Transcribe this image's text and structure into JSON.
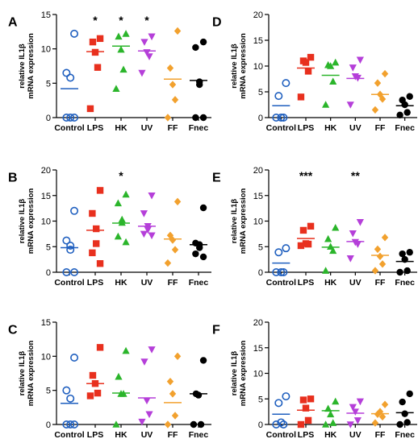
{
  "figure": {
    "marker_colors": {
      "Control": "#1f5fbf",
      "LPS": "#e8301e",
      "HK": "#2bb52b",
      "UV": "#b53fd9",
      "FF": "#f2a12e",
      "Fnec": "#000000"
    },
    "marker_shapes": {
      "Control": "circle-open",
      "LPS": "square",
      "HK": "triangle-up",
      "UV": "triangle-down",
      "FF": "diamond",
      "Fnec": "circle"
    }
  },
  "chart_data": [
    {
      "panel": "A",
      "type": "scatter",
      "ylabel": "relative IL1β mRNA expression",
      "ylim": [
        0,
        15
      ],
      "yticks": [
        0,
        5,
        10,
        15
      ],
      "categories": [
        "Control",
        "LPS",
        "HK",
        "UV",
        "FF",
        "Fnec"
      ],
      "points": [
        [
          12.2,
          6.5,
          5.8,
          0,
          0,
          0
        ],
        [
          11.5,
          11.0,
          9.5,
          7.3,
          1.3
        ],
        [
          12.2,
          11.8,
          9.9,
          7.0,
          4.2
        ],
        [
          11.8,
          11.0,
          9.5,
          8.9,
          6.5
        ],
        [
          12.6,
          7.2,
          4.8,
          2.6,
          0
        ],
        [
          11.0,
          10.2,
          5.2,
          4.8,
          0,
          0
        ]
      ],
      "means": [
        4.2,
        9.6,
        10.4,
        9.7,
        5.6,
        5.4
      ],
      "annotations": [
        "",
        "*",
        "*",
        "*",
        "",
        ""
      ]
    },
    {
      "panel": "B",
      "type": "scatter",
      "ylabel": "relative IL1β mRNA expression",
      "ylim": [
        0,
        20
      ],
      "yticks": [
        0,
        5,
        10,
        15,
        20
      ],
      "categories": [
        "Control",
        "LPS",
        "HK",
        "UV",
        "FF",
        "Fnec"
      ],
      "points": [
        [
          12.0,
          6.2,
          5.2,
          4.4,
          0,
          0
        ],
        [
          16.0,
          11.5,
          8.5,
          5.6,
          3.8,
          1.7
        ],
        [
          15.2,
          13.5,
          10.3,
          9.7,
          7.0,
          5.9
        ],
        [
          15.0,
          11.5,
          9.0,
          8.3,
          7.5,
          7.2
        ],
        [
          13.8,
          7.2,
          6.3,
          4.4,
          1.8
        ],
        [
          12.6,
          5.7,
          5.4,
          4.8,
          3.6,
          3.0
        ]
      ],
      "means": [
        4.8,
        8.2,
        9.6,
        9.0,
        6.5,
        5.4
      ],
      "annotations": [
        "",
        "",
        "*",
        "",
        "",
        ""
      ]
    },
    {
      "panel": "C",
      "type": "scatter",
      "ylabel": "relative IL1β mRNA expression",
      "ylim": [
        0,
        15
      ],
      "yticks": [
        0,
        5,
        10,
        15
      ],
      "categories": [
        "Control",
        "LPS",
        "HK",
        "UV",
        "FF",
        "Fnec"
      ],
      "points": [
        [
          9.8,
          5.0,
          3.8,
          0,
          0,
          0
        ],
        [
          11.3,
          7.2,
          6.0,
          4.6,
          4.2
        ],
        [
          10.8,
          7.0,
          4.5,
          4.5,
          0
        ],
        [
          11.0,
          9.2,
          3.5,
          1.5,
          0.4
        ],
        [
          10.0,
          6.3,
          4.5,
          1.3,
          0
        ],
        [
          9.4,
          4.5,
          4.3,
          0,
          0
        ]
      ],
      "means": [
        3.1,
        6.0,
        4.6,
        3.9,
        3.2,
        4.5
      ],
      "annotations": [
        "",
        "",
        "",
        "",
        "",
        ""
      ]
    },
    {
      "panel": "D",
      "type": "scatter",
      "ylabel": "relative IL1β mRNA expression",
      "ylim": [
        0,
        20
      ],
      "yticks": [
        0,
        5,
        10,
        15,
        20
      ],
      "categories": [
        "Control",
        "LPS",
        "HK",
        "UV",
        "FF",
        "Fnec"
      ],
      "points": [
        [
          6.7,
          4.2,
          0,
          0,
          0
        ],
        [
          11.7,
          11.0,
          10.7,
          9.0,
          4.0
        ],
        [
          10.7,
          10.2,
          10.0,
          7.0,
          2.5
        ],
        [
          11.2,
          9.7,
          8.0,
          7.7,
          2.5
        ],
        [
          8.5,
          6.7,
          4.5,
          3.6,
          1.5
        ],
        [
          4.1,
          3.4,
          2.5,
          1.0,
          0.5
        ]
      ],
      "means": [
        2.3,
        9.6,
        8.2,
        7.6,
        4.5,
        2.3
      ],
      "annotations": [
        "",
        "",
        "",
        "",
        "",
        ""
      ]
    },
    {
      "panel": "E",
      "type": "scatter",
      "ylabel": "relative IL1β mRNA expression",
      "ylim": [
        0,
        20
      ],
      "yticks": [
        0,
        5,
        10,
        15,
        20
      ],
      "categories": [
        "Control",
        "LPS",
        "HK",
        "UV",
        "FF",
        "Fnec"
      ],
      "points": [
        [
          4.7,
          3.9,
          0,
          0,
          0
        ],
        [
          9.0,
          8.2,
          5.6,
          5.5,
          5.2
        ],
        [
          8.7,
          6.5,
          5.0,
          4.2,
          0.3
        ],
        [
          9.8,
          7.6,
          5.9,
          5.5,
          2.7
        ],
        [
          6.8,
          4.5,
          3.1,
          1.6,
          0.3
        ],
        [
          3.9,
          3.6,
          2.5,
          0.3,
          0
        ]
      ],
      "means": [
        1.8,
        6.6,
        4.9,
        6.0,
        3.3,
        2.1
      ],
      "annotations": [
        "",
        "***",
        "",
        "**",
        "",
        ""
      ]
    },
    {
      "panel": "F",
      "type": "scatter",
      "ylabel": "relative IL1β mRNA expression",
      "ylim": [
        0,
        20
      ],
      "yticks": [
        0,
        5,
        10,
        15,
        20
      ],
      "categories": [
        "Control",
        "LPS",
        "HK",
        "UV",
        "FF",
        "Fnec"
      ],
      "points": [
        [
          5.5,
          4.2,
          0.4,
          0,
          0
        ],
        [
          5.0,
          4.8,
          3.2,
          0.8,
          0
        ],
        [
          4.5,
          3.1,
          2.0,
          0.3,
          0
        ],
        [
          4.5,
          3.4,
          2.5,
          0.8,
          0
        ],
        [
          3.9,
          2.0,
          2.5,
          1.5,
          0.3
        ],
        [
          6.0,
          4.4,
          2.1,
          0.4,
          0
        ]
      ],
      "means": [
        2.0,
        2.8,
        2.7,
        2.2,
        2.1,
        2.3
      ],
      "annotations": [
        "",
        "",
        "",
        "",
        "",
        ""
      ]
    }
  ]
}
